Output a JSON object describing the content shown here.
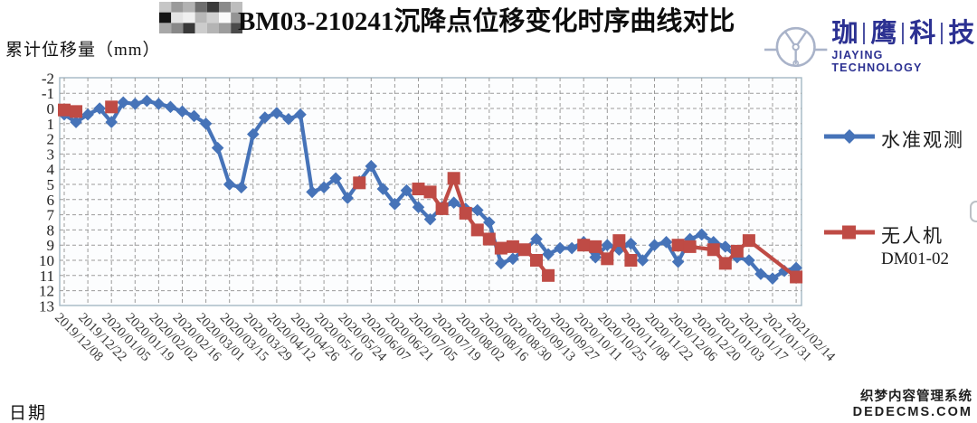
{
  "header": {
    "title": "BM03-210241沉降点位移变化时序曲线对比",
    "redacted_mosaic_rows": [
      [
        "#c6c6c6",
        "#9a9a9a",
        "#b2b2b2",
        "#6e6e6e",
        "#3a3a3a",
        "#8a8a8a",
        "#bdbdbd"
      ],
      [
        "#141414",
        "#e4e4e4",
        "#f0f0f0",
        "#b8b8b8",
        "#d0d0d0",
        "#fafafa",
        "#949494"
      ],
      [
        "#a8a8a8",
        "#888888",
        "#383838",
        "#cccccc",
        "#b4b4b4",
        "#9c9c9c",
        "#4a4a4a"
      ]
    ]
  },
  "logo": {
    "brand_cn": [
      "珈",
      "鹰",
      "科",
      "技"
    ],
    "brand_en": "JIAYING TECHNOLOGY",
    "color": "#2c3192",
    "icon": "drone-propeller-icon"
  },
  "axes": {
    "y_title": "累计位移量（mm）",
    "x_title": "日期",
    "y_ticks": [
      -2,
      -1,
      0,
      1,
      2,
      3,
      4,
      5,
      6,
      7,
      8,
      9,
      10,
      11,
      12,
      13
    ],
    "x_labels": [
      "2019/12/08",
      "2019/12/22",
      "2020/01/05",
      "2020/01/19",
      "2020/02/02",
      "2020/02/16",
      "2020/03/01",
      "2020/03/15",
      "2020/03/29",
      "2020/04/12",
      "2020/04/26",
      "2020/05/10",
      "2020/05/24",
      "2020/06/07",
      "2020/06/21",
      "2020/07/05",
      "2020/07/19",
      "2020/08/02",
      "2020/08/16",
      "2020/08/30",
      "2020/09/13",
      "2020/09/27",
      "2020/10/11",
      "2020/10/25",
      "2020/11/08",
      "2020/11/22",
      "2020/12/06",
      "2020/12/20",
      "2021/01/03",
      "2021/01/17",
      "2021/01/31",
      "2021/02/14"
    ]
  },
  "legend": {
    "items": [
      {
        "label": "水准观测",
        "marker": "diamond",
        "color": "#4673b8"
      },
      {
        "label": "无人机",
        "sublabel": "DM01-02",
        "marker": "square",
        "color": "#bf4b45"
      }
    ]
  },
  "watermark": {
    "line1": "织梦内容管理系统",
    "line2": "DEDECMS.COM"
  },
  "colors": {
    "series_leveling": "#4673b8",
    "series_drone": "#bf4b45",
    "gridline": "#9b9b9b",
    "plot_border": "#a4b8c4",
    "brand_navy": "#2c3192"
  },
  "chart_data": {
    "type": "line",
    "title": "BM03-210241沉降点位移变化时序曲线对比",
    "xlabel": "日期",
    "ylabel": "累计位移量（mm）",
    "y_axis": {
      "min": -2,
      "max": 13,
      "step": 1,
      "inverted": true,
      "note": "settlement in mm plotted downward; 0 line near top"
    },
    "x_tick_labels": [
      "2019/12/08",
      "2019/12/22",
      "2020/01/05",
      "2020/01/19",
      "2020/02/02",
      "2020/02/16",
      "2020/03/01",
      "2020/03/15",
      "2020/03/29",
      "2020/04/12",
      "2020/04/26",
      "2020/05/10",
      "2020/05/24",
      "2020/06/07",
      "2020/06/21",
      "2020/07/05",
      "2020/07/19",
      "2020/08/02",
      "2020/08/16",
      "2020/08/30",
      "2020/09/13",
      "2020/09/27",
      "2020/10/11",
      "2020/10/25",
      "2020/11/08",
      "2020/11/22",
      "2020/12/06",
      "2020/12/20",
      "2021/01/03",
      "2021/01/17",
      "2021/01/31",
      "2021/02/14"
    ],
    "points_per_tick": 2,
    "n_points": 63,
    "grid": {
      "horizontal": true,
      "vertical": true,
      "style": "dashed"
    },
    "legend_position": "right",
    "series": [
      {
        "name": "水准观测",
        "marker": "diamond",
        "color": "#4673b8",
        "values": [
          0.4,
          0.9,
          0.4,
          0.0,
          0.9,
          -0.4,
          -0.3,
          -0.5,
          -0.3,
          -0.1,
          0.2,
          0.5,
          1.0,
          2.6,
          5.0,
          5.2,
          1.7,
          0.6,
          0.3,
          0.7,
          0.4,
          5.5,
          5.2,
          4.6,
          5.9,
          4.8,
          3.8,
          5.3,
          6.3,
          5.4,
          6.5,
          7.3,
          6.5,
          6.2,
          6.6,
          6.7,
          7.5,
          10.2,
          9.9,
          9.3,
          8.6,
          9.6,
          9.2,
          9.2,
          8.8,
          9.8,
          9.0,
          9.3,
          8.9,
          10.0,
          9.0,
          8.8,
          10.1,
          8.6,
          8.3,
          8.8,
          9.1,
          9.8,
          10.0,
          10.9,
          11.2,
          10.7,
          10.5
        ]
      },
      {
        "name": "无人机 DM01-02",
        "marker": "square",
        "color": "#bf4b45",
        "segments": [
          [
            [
              0,
              0.1
            ],
            [
              1,
              0.2
            ]
          ],
          [
            [
              4,
              -0.1
            ]
          ],
          [
            [
              25,
              4.9
            ]
          ],
          [
            [
              30,
              5.3
            ],
            [
              31,
              5.5
            ],
            [
              32,
              6.6
            ],
            [
              33,
              4.6
            ],
            [
              34,
              6.9
            ],
            [
              35,
              8.0
            ],
            [
              36,
              8.6
            ],
            [
              37,
              9.2
            ],
            [
              38,
              9.1
            ],
            [
              39,
              9.3
            ],
            [
              40,
              10.0
            ],
            [
              41,
              11.0
            ]
          ],
          [
            [
              44,
              9.0
            ],
            [
              45,
              9.1
            ],
            [
              46,
              9.9
            ],
            [
              47,
              8.7
            ],
            [
              48,
              10.0
            ]
          ],
          [
            [
              52,
              9.0
            ],
            [
              53,
              9.1
            ],
            [
              55,
              9.3
            ],
            [
              56,
              10.2
            ],
            [
              57,
              9.4
            ],
            [
              58,
              8.7
            ],
            [
              62,
              11.1
            ]
          ]
        ]
      }
    ]
  }
}
